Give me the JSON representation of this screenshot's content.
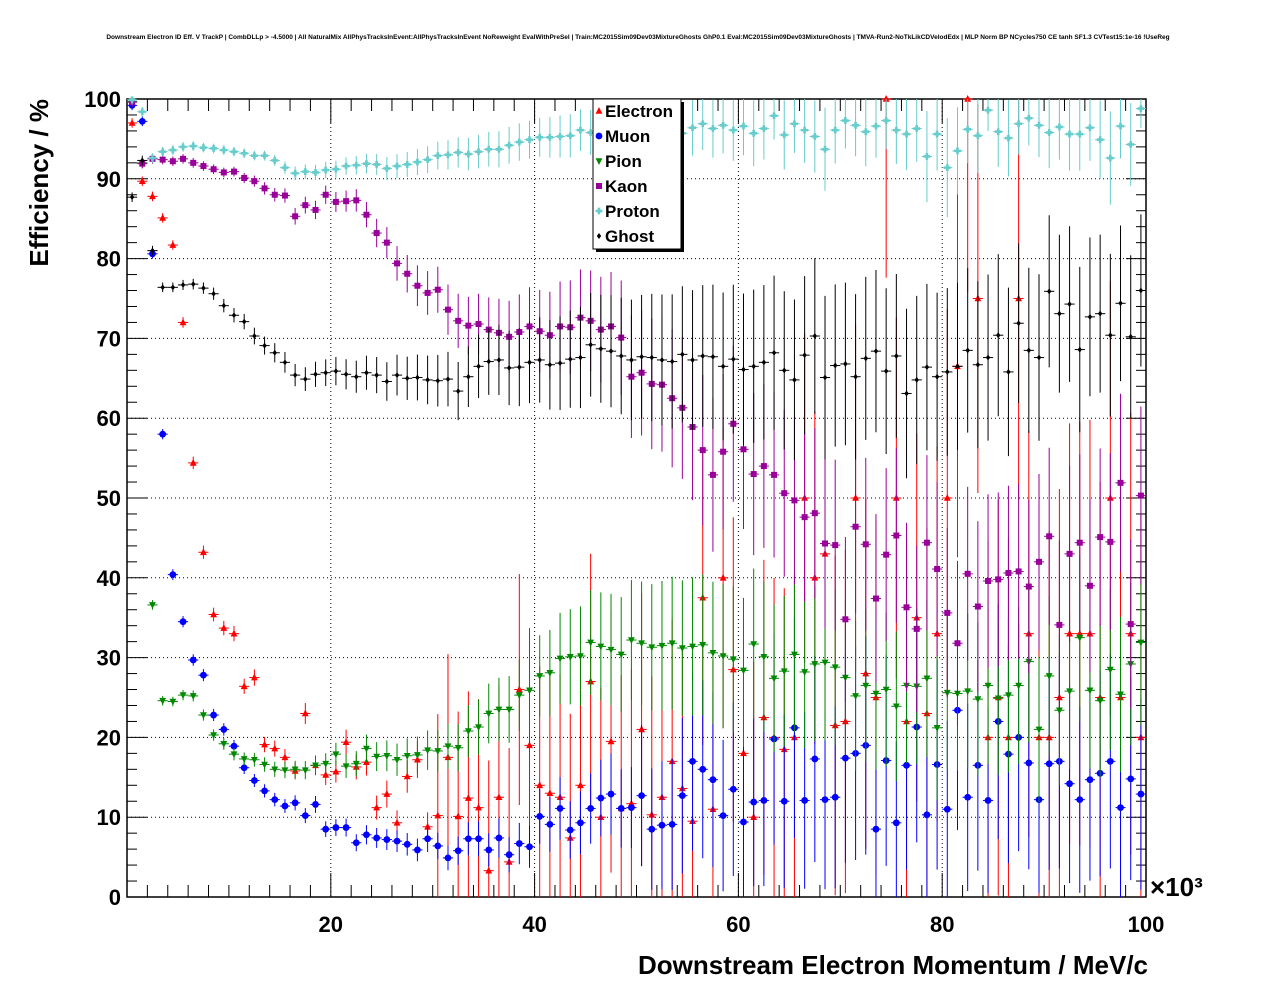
{
  "chart_data": {
    "type": "scatter",
    "title": "Downstream Electron ID Eff. V TrackP | CombDLLp > -4.5000 | All NaturalMix AllPhysTracksInEvent:AllPhysTracksInEvent NoReweight EvalWithPreSel | Train:MC2015Sim09Dev03MixtureGhosts GhP0.1 Eval:MC2015Sim09Dev03MixtureGhosts | TMVA-Run2-NoTkLikCDVelodEdx | MLP Norm BP NCycles750 CE tanh SF1.3 CVTest15:1e-16 !UseReg",
    "xlabel": "Downstream Electron Momentum / MeV/c",
    "ylabel": "Efficiency / %",
    "x_multiplier_label": "×10³",
    "xlim": [
      0,
      100
    ],
    "ylim": [
      0,
      100
    ],
    "x_ticks": [
      20,
      40,
      60,
      80,
      100
    ],
    "y_ticks": [
      0,
      10,
      20,
      30,
      40,
      50,
      60,
      70,
      80,
      90,
      100
    ],
    "grid": true,
    "legend_position": "top-center",
    "x": [
      0.5,
      1.5,
      2.5,
      3.5,
      4.5,
      5.5,
      6.5,
      7.5,
      8.5,
      9.5,
      10.5,
      11.5,
      12.5,
      13.5,
      14.5,
      15.5,
      16.5,
      17.5,
      18.5,
      19.5,
      20.5,
      21.5,
      22.5,
      23.5,
      24.5,
      25.5,
      26.5,
      27.5,
      28.5,
      29.5,
      30.5,
      31.5,
      32.5,
      33.5,
      34.5,
      35.5,
      36.5,
      37.5,
      38.5,
      39.5,
      40.5,
      41.5,
      42.5,
      43.5,
      44.5,
      45.5,
      46.5,
      47.5,
      48.5,
      49.5,
      50.5,
      51.5,
      52.5,
      53.5,
      54.5,
      55.5,
      56.5,
      57.5,
      58.5,
      59.5,
      60.5,
      61.5,
      62.5,
      63.5,
      64.5,
      65.5,
      66.5,
      67.5,
      68.5,
      69.5,
      70.5,
      71.5,
      72.5,
      73.5,
      74.5,
      75.5,
      76.5,
      77.5,
      78.5,
      79.5,
      80.5,
      81.5,
      82.5,
      83.5,
      84.5,
      85.5,
      86.5,
      87.5,
      88.5,
      89.5,
      90.5,
      91.5,
      92.5,
      93.5,
      94.5,
      95.5,
      96.5,
      97.5,
      98.5,
      99.5
    ],
    "series": [
      {
        "name": "Electron",
        "marker": "triangle-up",
        "color": "#ff0000",
        "values": [
          97,
          89.7,
          87.8,
          85.1,
          81.7,
          72,
          54.4,
          43.2,
          35.4,
          33.7,
          33,
          26.4,
          27.5,
          19.1,
          18.6,
          17.5,
          15.8,
          23,
          16.5,
          15.3,
          15.7,
          19.4,
          16.3,
          16.9,
          11.2,
          12.9,
          9.3,
          15.1,
          17.2,
          8.8,
          10.2,
          17.5,
          10.1,
          12.4,
          11.2,
          3.3,
          12.5,
          4.4,
          26,
          19,
          14,
          13,
          12.5,
          7.4,
          14,
          27,
          10,
          19.5,
          11.1,
          11.7,
          21,
          10.3,
          12.5,
          17,
          13.6,
          9.5,
          37.5,
          11,
          40,
          28.5,
          18,
          10,
          22.5,
          20,
          18.5,
          20,
          50,
          40,
          43,
          21.5,
          22,
          50,
          28,
          25,
          100,
          50,
          22,
          35,
          23,
          33,
          50,
          66.5,
          100,
          75,
          20,
          25,
          20,
          75,
          33,
          20,
          20,
          25,
          33,
          33,
          33,
          25,
          50,
          25,
          33,
          20
        ]
      },
      {
        "name": "Muon",
        "marker": "circle",
        "color": "#0000ff",
        "values": [
          99.2,
          97.2,
          80.6,
          58,
          40.4,
          34.5,
          29.7,
          27.8,
          22.8,
          21,
          18.9,
          16.2,
          14.6,
          13.3,
          12.2,
          11.4,
          11.8,
          10.2,
          11.6,
          8.5,
          8.7,
          8.7,
          6.8,
          7.8,
          7.4,
          7.2,
          7,
          6.6,
          5.9,
          7.3,
          6.4,
          4.9,
          5.8,
          7.3,
          7.3,
          5.9,
          7.4,
          5.3,
          6.7,
          6.3,
          10.1,
          9.1,
          11.1,
          8.4,
          9.3,
          11.1,
          12.4,
          12.9,
          11.1,
          11.2,
          12.7,
          8.5,
          9,
          9.1,
          12.7,
          17,
          16,
          14.7,
          10.2,
          13.5,
          9.4,
          11.9,
          12.1,
          19.8,
          12,
          21.2,
          12.1,
          17.3,
          12.2,
          12.5,
          17.4,
          18,
          19,
          8.5,
          17.1,
          9.3,
          16.5,
          21.3,
          10.3,
          16.6,
          11,
          23.4,
          12.5,
          16.5,
          12.1,
          22,
          17.9,
          20,
          16.8,
          12.2,
          16.7,
          17,
          14.2,
          12.2,
          14.7,
          15.5,
          17,
          11.2,
          14.8,
          12.9
        ]
      },
      {
        "name": "Pion",
        "marker": "triangle-down",
        "color": "#008800",
        "values": [
          99.7,
          92,
          36.6,
          24.6,
          24.5,
          25.3,
          25.2,
          22.8,
          20.3,
          19.2,
          17.9,
          17.3,
          17.2,
          16.6,
          16,
          15.9,
          16,
          15.9,
          16.5,
          16.7,
          17.9,
          16.4,
          16.7,
          18.6,
          17.6,
          17.7,
          17.2,
          17.7,
          17.8,
          18.4,
          18.3,
          18.9,
          18.7,
          20.8,
          21.3,
          23,
          23.5,
          23.5,
          25.3,
          25.9,
          27.7,
          28.1,
          29.9,
          30.1,
          30.2,
          31.9,
          31.4,
          31,
          30.4,
          32.2,
          31.8,
          31.3,
          31.5,
          31.8,
          31.2,
          31.4,
          31.6,
          30.6,
          30.2,
          29.8,
          28.4,
          31.7,
          30.1,
          27.4,
          28.3,
          30.4,
          28.2,
          29.2,
          29.4,
          28.8,
          27.5,
          25.2,
          26.5,
          25.5,
          26,
          23.9,
          26.5,
          26.4,
          27.4,
          21.2,
          25.6,
          25.5,
          25.8,
          24.8,
          26.5,
          24.9,
          25.3,
          26.5,
          29.5,
          21,
          27.7,
          23.4,
          25.8,
          32.5,
          25.9,
          24.6,
          28.5,
          25.4,
          29.2,
          31.9
        ]
      },
      {
        "name": "Kaon",
        "marker": "square",
        "color": "#990099",
        "values": [
          99.6,
          91.9,
          92.5,
          92.4,
          92.2,
          92.5,
          92,
          91.6,
          91.2,
          90.8,
          90.9,
          90.1,
          89.7,
          88.8,
          88,
          87.9,
          85.3,
          86.7,
          86.1,
          88,
          87.1,
          87.2,
          87.3,
          85.5,
          83.2,
          82,
          79.4,
          78.1,
          76.6,
          75.7,
          76.1,
          73.6,
          72.2,
          71.6,
          71.8,
          71.1,
          70.7,
          70.2,
          70.8,
          71.5,
          70.9,
          70.4,
          71.5,
          71.4,
          72.6,
          72.2,
          71.1,
          71.5,
          70.1,
          65.2,
          65.7,
          64.3,
          64.2,
          62.5,
          61.3,
          58.9,
          56,
          52.9,
          55.8,
          59.3,
          56.1,
          53,
          54,
          52.9,
          50.6,
          49.7,
          47.6,
          48.1,
          44.3,
          44.1,
          34.8,
          46.4,
          44.2,
          37.4,
          42.9,
          45.3,
          36.3,
          33.6,
          44.4,
          41.1,
          35.6,
          31.8,
          40.5,
          36.4,
          39.6,
          39.8,
          40.6,
          40.8,
          38.9,
          42,
          45.2,
          34.1,
          43,
          44.4,
          39,
          45.1,
          44.5,
          51.9,
          34.2,
          50.3
        ]
      },
      {
        "name": "Proton",
        "marker": "cross",
        "color": "#66cccc",
        "values": [
          99.9,
          98.4,
          92.6,
          93.4,
          93.6,
          94,
          94.1,
          93.9,
          93.8,
          93.6,
          93.4,
          93.2,
          92.9,
          92.9,
          92.3,
          91.4,
          90.7,
          90.9,
          90.8,
          91.1,
          91.2,
          91.6,
          91.7,
          91.9,
          91.8,
          91.3,
          91.6,
          91.8,
          92.1,
          92.4,
          92.9,
          93,
          93.3,
          93.1,
          93.4,
          93.7,
          93.7,
          94.2,
          94.6,
          94.9,
          95.2,
          95.2,
          95.3,
          95.4,
          96.1,
          95.8,
          96.2,
          95.1,
          96.4,
          96,
          96.5,
          95.7,
          95.8,
          96.1,
          95.7,
          96.4,
          96.9,
          96.3,
          96.7,
          96.1,
          96.6,
          95.7,
          96.3,
          97.9,
          95.5,
          96.9,
          96.1,
          95.3,
          93.7,
          96.1,
          97.3,
          96.7,
          95.9,
          96.6,
          97.3,
          96.1,
          95.6,
          96.3,
          92.8,
          95.6,
          91.4,
          93.5,
          96.2,
          95.4,
          98.6,
          95.9,
          95.1,
          96.9,
          97.6,
          96.7,
          95.8,
          96.5,
          95.6,
          95.6,
          96.4,
          94.9,
          92.6,
          96.6,
          94.3,
          98.8
        ]
      },
      {
        "name": "Ghost",
        "marker": "diamond",
        "color": "#000000",
        "values": [
          87.7,
          92.3,
          81,
          76.4,
          76.4,
          76.7,
          76.8,
          76.3,
          75.6,
          74.1,
          72.9,
          72.1,
          70.3,
          69.1,
          68.2,
          67,
          65.4,
          64.9,
          65.5,
          65.7,
          65.9,
          65.5,
          65.2,
          65.7,
          65.4,
          64.6,
          65.4,
          65,
          65.1,
          64.8,
          64.7,
          64.9,
          63.4,
          65.2,
          66.5,
          67.1,
          67.3,
          66.3,
          66.4,
          67,
          67.3,
          66.7,
          66.9,
          67.4,
          67.6,
          69.2,
          68.7,
          68.4,
          67.8,
          67.3,
          67.7,
          67.6,
          67.3,
          67.1,
          68,
          67.3,
          67.8,
          67.7,
          66.5,
          67.4,
          66.1,
          66.5,
          67,
          68.2,
          66,
          64.8,
          67.9,
          70.3,
          65.1,
          66.6,
          66.8,
          65.2,
          67.5,
          68.4,
          65.9,
          67.8,
          63.1,
          64.8,
          66.4,
          65.2,
          65.8,
          66.5,
          68.5,
          66.7,
          67.6,
          70.4,
          65.8,
          71.9,
          68.5,
          67.6,
          75.9,
          73.1,
          74.3,
          68.6,
          72.7,
          73.1,
          70.4,
          74.4,
          70.2,
          76
        ]
      }
    ]
  }
}
